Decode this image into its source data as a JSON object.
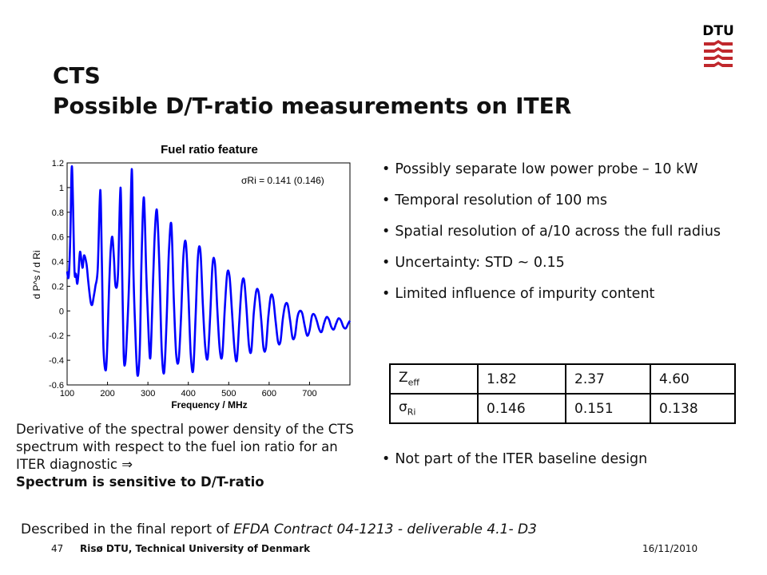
{
  "slide": {
    "title_line1": "CTS",
    "title_line2": "Possible D/T-ratio measurements on ITER",
    "logo_text": "DTU"
  },
  "chart_data": {
    "type": "line",
    "title": "Fuel ratio feature",
    "xlabel": "Frequency / MHz",
    "ylabel": "d P^s / d Ri",
    "xlim": [
      100,
      800
    ],
    "ylim": [
      -0.6,
      1.2
    ],
    "xticks": [
      "100",
      "200",
      "300",
      "400",
      "500",
      "600",
      "700"
    ],
    "yticks": [
      "1.2",
      "1",
      "0.8",
      "0.6",
      "0.4",
      "0.2",
      "0",
      "-0.2",
      "-0.4",
      "-0.6"
    ],
    "annotation": "σRi = 0.141 (0.146)",
    "color": "#0000ff",
    "series": [
      {
        "x": [
          100,
          104,
          108,
          112,
          118,
          122,
          125,
          128,
          132,
          138,
          142,
          148,
          152,
          158,
          162,
          166,
          170,
          176,
          182,
          186,
          190,
          196,
          200,
          204,
          208,
          212,
          216,
          220,
          226,
          232,
          236,
          240,
          244,
          248,
          254,
          260,
          264,
          268,
          274,
          280,
          284,
          290,
          296,
          302,
          306,
          310,
          316,
          322,
          328,
          334,
          340,
          346,
          352,
          358,
          364,
          370,
          376,
          382,
          388,
          394,
          400,
          406,
          412,
          418,
          424,
          430,
          436,
          442,
          448,
          454,
          460,
          466,
          472,
          478,
          484,
          490,
          496,
          502,
          508,
          514,
          520,
          526,
          532,
          538,
          544,
          550,
          556,
          562,
          568,
          574,
          580,
          586,
          592,
          598,
          604,
          610,
          616,
          622,
          628,
          634,
          640,
          646,
          652,
          658,
          664,
          670,
          676,
          682,
          688,
          694,
          700,
          706,
          712,
          718,
          724,
          730,
          736,
          742,
          748,
          754,
          760,
          766,
          772,
          778,
          784,
          790,
          796,
          800
        ],
        "y": [
          0.32,
          0.28,
          0.6,
          1.17,
          0.35,
          0.3,
          0.22,
          0.3,
          0.48,
          0.35,
          0.45,
          0.38,
          0.25,
          0.08,
          0.05,
          0.12,
          0.2,
          0.35,
          0.98,
          0.4,
          -0.3,
          -0.48,
          -0.22,
          0.2,
          0.5,
          0.6,
          0.42,
          0.2,
          0.3,
          1.0,
          0.35,
          -0.35,
          -0.42,
          -0.2,
          0.3,
          1.15,
          0.35,
          -0.1,
          -0.52,
          -0.3,
          0.4,
          0.92,
          0.3,
          -0.22,
          -0.38,
          -0.05,
          0.55,
          0.82,
          0.4,
          -0.3,
          -0.5,
          -0.1,
          0.48,
          0.7,
          0.1,
          -0.35,
          -0.4,
          -0.05,
          0.45,
          0.55,
          0.15,
          -0.35,
          -0.48,
          -0.05,
          0.45,
          0.48,
          0.05,
          -0.3,
          -0.38,
          -0.05,
          0.38,
          0.38,
          0.0,
          -0.32,
          -0.36,
          0.0,
          0.3,
          0.28,
          0.0,
          -0.3,
          -0.4,
          -0.1,
          0.2,
          0.25,
          0.02,
          -0.28,
          -0.32,
          -0.02,
          0.16,
          0.15,
          -0.05,
          -0.3,
          -0.3,
          -0.05,
          0.12,
          0.1,
          -0.08,
          -0.25,
          -0.25,
          -0.06,
          0.05,
          0.05,
          -0.08,
          -0.22,
          -0.2,
          -0.05,
          0.0,
          -0.02,
          -0.12,
          -0.2,
          -0.16,
          -0.04,
          -0.03,
          -0.08,
          -0.15,
          -0.17,
          -0.1,
          -0.05,
          -0.07,
          -0.13,
          -0.15,
          -0.1,
          -0.06,
          -0.08,
          -0.13,
          -0.14,
          -0.1,
          -0.08
        ]
      }
    ]
  },
  "bullets": [
    "Possibly separate low power probe – 10 kW",
    "Temporal resolution of 100 ms",
    "Spatial resolution of a/10 across the full radius",
    "Uncertainty: STD ~ 0.15",
    "Limited influence of impurity content"
  ],
  "table": {
    "row1_label_main": "Z",
    "row1_label_sub": "eff",
    "row1": [
      "1.82",
      "2.37",
      "4.60"
    ],
    "row2_label_main": "σ",
    "row2_label_sub": "Ri",
    "row2": [
      "0.146",
      "0.151",
      "0.138"
    ]
  },
  "bullet_after_table": "Not part of the ITER baseline design",
  "caption": {
    "text": "Derivative of the spectral power density of the CTS spectrum with respect to the fuel ion ratio for an ITER diagnostic",
    "arrow": "⇒",
    "bold": "Spectrum is sensitive to D/T-ratio"
  },
  "described": {
    "prefix": "Described in the final report of ",
    "italic": "EFDA Contract 04-1213 - deliverable 4.1- D3"
  },
  "footer": {
    "page": "47",
    "org": "Risø DTU, Technical University of Denmark",
    "date": "16/11/2010"
  }
}
